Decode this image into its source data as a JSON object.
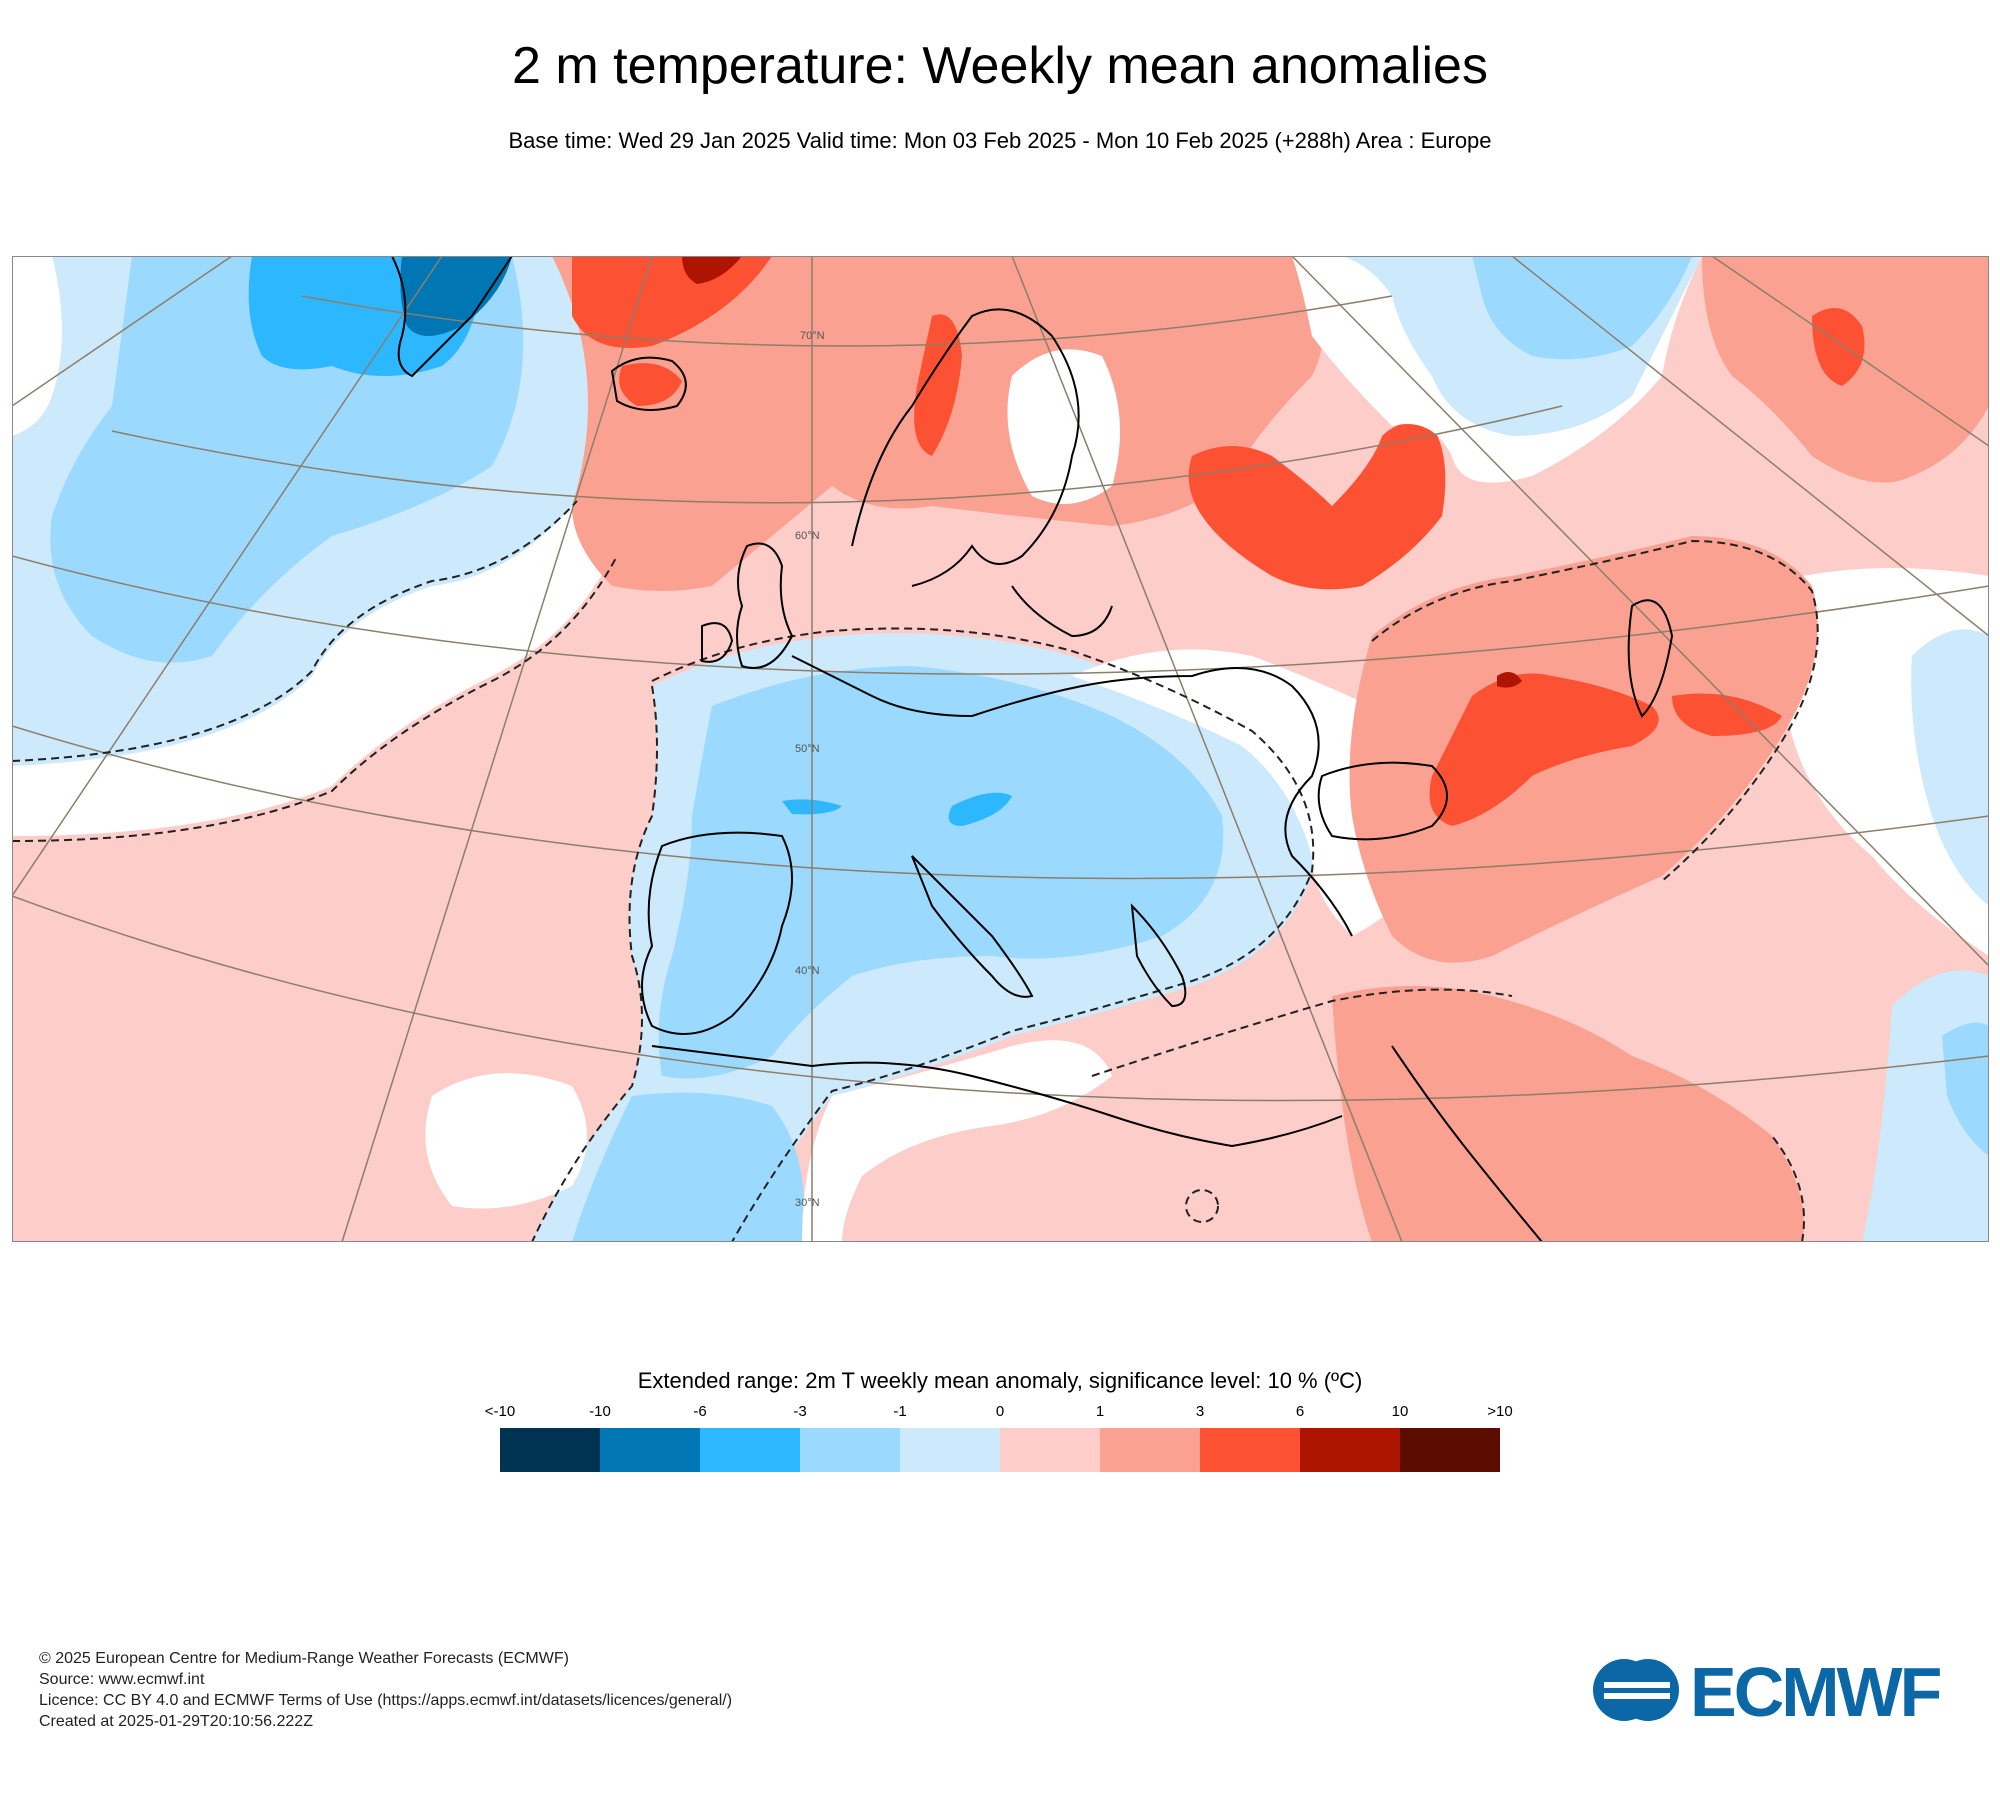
{
  "title": "2 m temperature: Weekly mean anomalies",
  "subtitle": "Base time: Wed 29 Jan 2025 Valid time: Mon 03 Feb 2025 - Mon 10 Feb 2025 (+288h) Area : Europe",
  "map": {
    "lat_labels": [
      "70°N",
      "60°N",
      "50°N",
      "40°N",
      "30°N"
    ],
    "land_color": "#ffffff",
    "coast_color": "#000000",
    "graticule_color": "#8c7e6a"
  },
  "legend": {
    "title": "Extended range: 2m T weekly mean anomaly, significance level: 10 % (ºC)",
    "tick_labels": [
      "<-10",
      "-10",
      "-6",
      "-3",
      "-1",
      "0",
      "1",
      "3",
      "6",
      "10",
      ">10"
    ],
    "colors": [
      "#003352",
      "#0076b4",
      "#2db7ff",
      "#9cd9fe",
      "#cde9fc",
      "#fdcdc9",
      "#fba191",
      "#fd5133",
      "#ae1500",
      "#5d0c00"
    ]
  },
  "footer": {
    "line1": "© 2025 European Centre for Medium-Range Weather Forecasts (ECMWF)",
    "line2": "Source: www.ecmwf.int",
    "line3": "Licence: CC BY 4.0 and ECMWF Terms of Use (https://apps.ecmwf.int/datasets/licences/general/)",
    "line4": "Created at 2025-01-29T20:10:56.222Z"
  },
  "logo_text": "ECMWF",
  "logo_color": "#0c67a6"
}
